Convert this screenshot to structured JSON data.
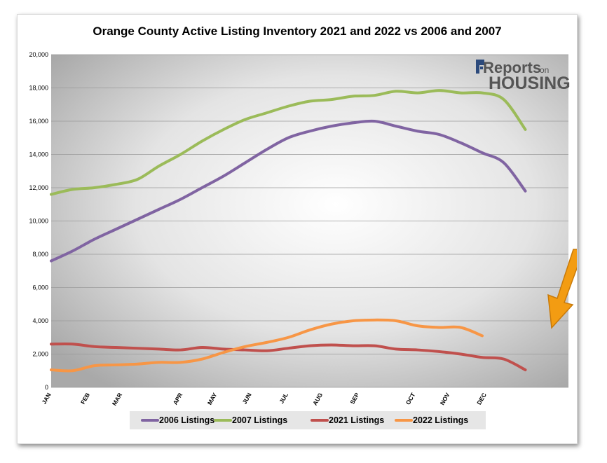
{
  "chart_data": {
    "type": "line",
    "title": "Orange County Active Listing Inventory 2021 and 2022 vs 2006 and 2007",
    "ylim": [
      0,
      20000
    ],
    "yticks": [
      "20,000",
      "18,000",
      "16,000",
      "14,000",
      "12,000",
      "10,000",
      "8,000",
      "6,000",
      "4,000",
      "2,000",
      "0"
    ],
    "ytick_values": [
      20000,
      18000,
      16000,
      14000,
      12000,
      10000,
      8000,
      6000,
      4000,
      2000,
      0
    ],
    "xlim": [
      0,
      24
    ],
    "month_labels": [
      {
        "label": "JAN",
        "x": 0
      },
      {
        "label": "FEB",
        "x": 1.8
      },
      {
        "label": "MAR",
        "x": 3.3
      },
      {
        "label": "APR",
        "x": 6.1
      },
      {
        "label": "MAY",
        "x": 7.7
      },
      {
        "label": "JUN",
        "x": 9.3
      },
      {
        "label": "JUL",
        "x": 11.0
      },
      {
        "label": "AUG",
        "x": 12.6
      },
      {
        "label": "SEP",
        "x": 14.3
      },
      {
        "label": "OCT",
        "x": 16.9
      },
      {
        "label": "NOV",
        "x": 18.5
      },
      {
        "label": "DEC",
        "x": 20.2
      }
    ],
    "grid": true,
    "legend_position": "bottom",
    "series": [
      {
        "name": "2006 Listings",
        "color": "#8064a2",
        "x": [
          0,
          1,
          2,
          3,
          4,
          5,
          6,
          7,
          8,
          9,
          10,
          11,
          12,
          13,
          14,
          15,
          16,
          17,
          18,
          19,
          20,
          21,
          22
        ],
        "values": [
          7600,
          8200,
          8900,
          9500,
          10100,
          10700,
          11300,
          12000,
          12700,
          13500,
          14300,
          15000,
          15400,
          15700,
          15900,
          16000,
          15700,
          15400,
          15200,
          14700,
          14100,
          13500,
          11800
        ]
      },
      {
        "name": "2007 Listings",
        "color": "#9bbb59",
        "x": [
          0,
          1,
          2,
          3,
          4,
          5,
          6,
          7,
          8,
          9,
          10,
          11,
          12,
          13,
          14,
          15,
          16,
          17,
          18,
          19,
          20,
          21,
          22
        ],
        "values": [
          11600,
          11900,
          12000,
          12200,
          12500,
          13300,
          14000,
          14800,
          15500,
          16100,
          16500,
          16900,
          17200,
          17300,
          17500,
          17550,
          17800,
          17700,
          17850,
          17700,
          17700,
          17300,
          15500
        ]
      },
      {
        "name": "2021 Listings",
        "color": "#c0504d",
        "x": [
          0,
          1,
          2,
          3,
          4,
          5,
          6,
          7,
          8,
          9,
          10,
          11,
          12,
          13,
          14,
          15,
          16,
          17,
          18,
          19,
          20,
          21,
          22
        ],
        "values": [
          2600,
          2600,
          2450,
          2400,
          2350,
          2300,
          2250,
          2400,
          2300,
          2250,
          2200,
          2350,
          2500,
          2550,
          2500,
          2500,
          2300,
          2250,
          2150,
          2000,
          1800,
          1700,
          1050
        ]
      },
      {
        "name": "2022 Listings",
        "color": "#f79646",
        "x": [
          0,
          1,
          2,
          3,
          4,
          5,
          6,
          7,
          8,
          9,
          10,
          11,
          12,
          13,
          14,
          15,
          16,
          17,
          18,
          19,
          20
        ],
        "values": [
          1050,
          1000,
          1300,
          1350,
          1400,
          1500,
          1500,
          1700,
          2100,
          2450,
          2700,
          3000,
          3450,
          3800,
          4000,
          4050,
          4000,
          3700,
          3600,
          3600,
          3100
        ]
      }
    ]
  },
  "logo": {
    "brand_small": "Reports",
    "brand_on": "on",
    "brand_big": "HOUSING"
  },
  "callout": {
    "arrow_color": "#f39c12"
  }
}
